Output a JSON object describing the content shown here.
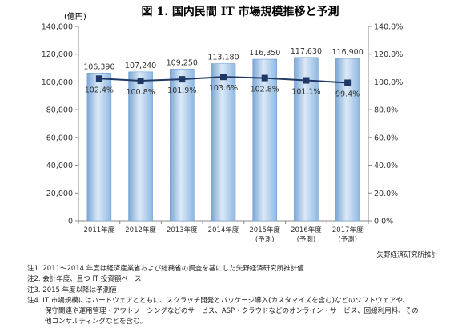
{
  "chart_data": {
    "type": "bar",
    "title": "図 1. 国内民間 IT 市場規模推移と予測",
    "y_unit": "(億円)",
    "categories": [
      [
        "2011年度"
      ],
      [
        "2012年度"
      ],
      [
        "2013年度"
      ],
      [
        "2014年度"
      ],
      [
        "2015年度",
        "(予測)"
      ],
      [
        "2016年度",
        "(予測)"
      ],
      [
        "2017年度",
        "(予測)"
      ]
    ],
    "series": [
      {
        "type": "bar",
        "axis": "left",
        "values": [
          106390,
          107240,
          109250,
          113180,
          116350,
          117630,
          116900
        ],
        "labels": [
          "106,390",
          "107,240",
          "109,250",
          "113,180",
          "116,350",
          "117,630",
          "116,900"
        ]
      },
      {
        "type": "line",
        "axis": "right",
        "values": [
          102.4,
          100.8,
          101.9,
          103.6,
          102.8,
          101.1,
          99.4
        ],
        "labels": [
          "102.4%",
          "100.8%",
          "101.9%",
          "103.6%",
          "102.8%",
          "101.1%",
          "99.4%"
        ]
      }
    ],
    "y_left": {
      "min": 0,
      "max": 140000,
      "ticks": [
        "0",
        "20,000",
        "40,000",
        "60,000",
        "80,000",
        "100,000",
        "120,000",
        "140,000"
      ]
    },
    "y_right": {
      "min": 0,
      "max": 140,
      "ticks": [
        "0.0%",
        "20.0%",
        "40.0%",
        "60.0%",
        "80.0%",
        "100.0%",
        "120.0%",
        "140.0%"
      ]
    },
    "grid": false,
    "colors": {
      "bar_top": "#dbe8f6",
      "bar_mid": "#9dc3e6",
      "bar_edge": "#6f9fd0",
      "line": "#1f3864"
    }
  },
  "source": "矢野経済研究所推計",
  "notes": [
    "注1. 2011～2014 年度は経済産業省および総務省の調査を基にした矢野経済研究所推計値",
    "注2. 会計年度、且つ IT 投資額ベース",
    "注3. 2015 年度以降は予測値",
    "注4. IT 市場規模にはハードウェアとともに、スクラッチ開発とパッケージ導入(カスタマイズを含む)などのソフトウェアや、",
    "保守関連や運用管理・アウトソーシングなどのサービス、ASP・クラウドなどのオンライン・サービス、回線利用料、その",
    "他コンサルティングなどを含む。"
  ]
}
